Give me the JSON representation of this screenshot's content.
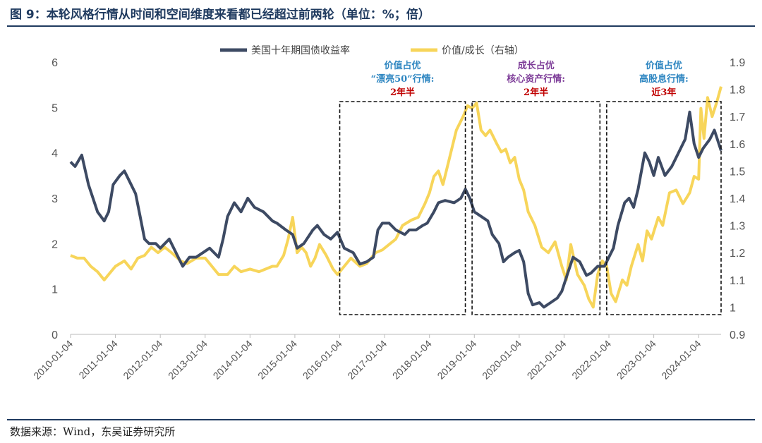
{
  "figure": {
    "title": "图 9：本轮风格行情从时间和空间维度来看都已经超过前两轮（单位：%；倍）",
    "source": "数据来源：Wind，东吴证券研究所"
  },
  "colors": {
    "yield_line": "#3d4a63",
    "value_growth_line": "#f7d55a",
    "title_blue": "#1f3a5f",
    "annotation_blue": "#2e86c1",
    "annotation_purple": "#7d3c98",
    "annotation_red": "#c00000"
  },
  "chart_data": {
    "type": "line",
    "x_tick_labels": [
      "2010-01-04",
      "2011-01-04",
      "2012-01-04",
      "2013-01-04",
      "2014-01-04",
      "2015-01-04",
      "2016-01-04",
      "2017-01-04",
      "2018-01-04",
      "2019-01-04",
      "2020-01-04",
      "2021-01-04",
      "2022-01-04",
      "2023-01-04",
      "2024-01-04"
    ],
    "xlim": [
      2010.0,
      2024.5
    ],
    "y_left": {
      "ylim": [
        0,
        6
      ],
      "ticks": [
        "0",
        "1",
        "2",
        "3",
        "4",
        "5",
        "6"
      ]
    },
    "y_right": {
      "ylim": [
        0.9,
        1.9
      ],
      "ticks": [
        "0.9",
        "1",
        "1.1",
        "1.2",
        "1.3",
        "1.4",
        "1.5",
        "1.6",
        "1.7",
        "1.8",
        "1.9"
      ]
    },
    "legend_position": "top",
    "series": [
      {
        "name": "美国十年期国债收益率",
        "axis": "left",
        "points": [
          [
            2010.0,
            3.8
          ],
          [
            2010.1,
            3.7
          ],
          [
            2010.25,
            3.95
          ],
          [
            2010.4,
            3.3
          ],
          [
            2010.5,
            3.0
          ],
          [
            2010.6,
            2.7
          ],
          [
            2010.75,
            2.5
          ],
          [
            2010.85,
            2.7
          ],
          [
            2010.95,
            3.3
          ],
          [
            2011.1,
            3.5
          ],
          [
            2011.2,
            3.6
          ],
          [
            2011.3,
            3.4
          ],
          [
            2011.45,
            3.1
          ],
          [
            2011.55,
            2.6
          ],
          [
            2011.65,
            2.1
          ],
          [
            2011.75,
            2.0
          ],
          [
            2011.9,
            2.0
          ],
          [
            2012.0,
            1.9
          ],
          [
            2012.2,
            2.1
          ],
          [
            2012.4,
            1.7
          ],
          [
            2012.5,
            1.5
          ],
          [
            2012.65,
            1.7
          ],
          [
            2012.8,
            1.7
          ],
          [
            2012.95,
            1.8
          ],
          [
            2013.1,
            1.9
          ],
          [
            2013.3,
            1.7
          ],
          [
            2013.4,
            2.1
          ],
          [
            2013.5,
            2.6
          ],
          [
            2013.65,
            2.9
          ],
          [
            2013.8,
            2.7
          ],
          [
            2013.95,
            3.0
          ],
          [
            2014.1,
            2.8
          ],
          [
            2014.3,
            2.7
          ],
          [
            2014.5,
            2.5
          ],
          [
            2014.6,
            2.45
          ],
          [
            2014.8,
            2.3
          ],
          [
            2014.95,
            2.2
          ],
          [
            2015.05,
            1.9
          ],
          [
            2015.2,
            2.0
          ],
          [
            2015.4,
            2.3
          ],
          [
            2015.5,
            2.4
          ],
          [
            2015.65,
            2.2
          ],
          [
            2015.8,
            2.1
          ],
          [
            2015.95,
            2.25
          ],
          [
            2016.1,
            1.9
          ],
          [
            2016.3,
            1.8
          ],
          [
            2016.45,
            1.55
          ],
          [
            2016.6,
            1.6
          ],
          [
            2016.75,
            1.7
          ],
          [
            2016.85,
            2.3
          ],
          [
            2016.95,
            2.45
          ],
          [
            2017.1,
            2.45
          ],
          [
            2017.25,
            2.3
          ],
          [
            2017.45,
            2.2
          ],
          [
            2017.55,
            2.3
          ],
          [
            2017.7,
            2.3
          ],
          [
            2017.85,
            2.4
          ],
          [
            2017.95,
            2.45
          ],
          [
            2018.1,
            2.7
          ],
          [
            2018.2,
            2.9
          ],
          [
            2018.35,
            2.95
          ],
          [
            2018.55,
            2.9
          ],
          [
            2018.7,
            3.0
          ],
          [
            2018.8,
            3.2
          ],
          [
            2018.9,
            3.0
          ],
          [
            2019.0,
            2.7
          ],
          [
            2019.15,
            2.6
          ],
          [
            2019.3,
            2.5
          ],
          [
            2019.4,
            2.2
          ],
          [
            2019.55,
            2.0
          ],
          [
            2019.65,
            1.6
          ],
          [
            2019.75,
            1.7
          ],
          [
            2019.9,
            1.8
          ],
          [
            2020.0,
            1.85
          ],
          [
            2020.1,
            1.6
          ],
          [
            2020.2,
            0.9
          ],
          [
            2020.3,
            0.65
          ],
          [
            2020.45,
            0.7
          ],
          [
            2020.55,
            0.6
          ],
          [
            2020.7,
            0.7
          ],
          [
            2020.85,
            0.8
          ],
          [
            2020.95,
            0.95
          ],
          [
            2021.1,
            1.4
          ],
          [
            2021.2,
            1.7
          ],
          [
            2021.35,
            1.6
          ],
          [
            2021.5,
            1.3
          ],
          [
            2021.6,
            1.35
          ],
          [
            2021.75,
            1.5
          ],
          [
            2021.9,
            1.5
          ],
          [
            2022.0,
            1.7
          ],
          [
            2022.1,
            1.9
          ],
          [
            2022.2,
            2.4
          ],
          [
            2022.35,
            2.9
          ],
          [
            2022.45,
            3.0
          ],
          [
            2022.55,
            2.8
          ],
          [
            2022.65,
            3.2
          ],
          [
            2022.8,
            4.0
          ],
          [
            2022.9,
            3.8
          ],
          [
            2023.0,
            3.5
          ],
          [
            2023.1,
            3.9
          ],
          [
            2023.25,
            3.5
          ],
          [
            2023.4,
            3.7
          ],
          [
            2023.55,
            4.0
          ],
          [
            2023.7,
            4.3
          ],
          [
            2023.8,
            4.9
          ],
          [
            2023.9,
            4.2
          ],
          [
            2024.0,
            3.9
          ],
          [
            2024.1,
            4.1
          ],
          [
            2024.25,
            4.3
          ],
          [
            2024.35,
            4.5
          ],
          [
            2024.45,
            4.2
          ],
          [
            2024.5,
            4.05
          ]
        ]
      },
      {
        "name": "价值/成长（右轴）",
        "axis": "right",
        "points": [
          [
            2010.0,
            1.19
          ],
          [
            2010.15,
            1.18
          ],
          [
            2010.3,
            1.18
          ],
          [
            2010.45,
            1.15
          ],
          [
            2010.6,
            1.13
          ],
          [
            2010.75,
            1.1
          ],
          [
            2010.85,
            1.12
          ],
          [
            2011.0,
            1.15
          ],
          [
            2011.2,
            1.17
          ],
          [
            2011.35,
            1.14
          ],
          [
            2011.5,
            1.18
          ],
          [
            2011.65,
            1.19
          ],
          [
            2011.8,
            1.22
          ],
          [
            2011.95,
            1.2
          ],
          [
            2012.1,
            1.22
          ],
          [
            2012.25,
            1.2
          ],
          [
            2012.45,
            1.17
          ],
          [
            2012.6,
            1.16
          ],
          [
            2012.8,
            1.18
          ],
          [
            2013.0,
            1.18
          ],
          [
            2013.15,
            1.15
          ],
          [
            2013.3,
            1.12
          ],
          [
            2013.5,
            1.12
          ],
          [
            2013.65,
            1.15
          ],
          [
            2013.8,
            1.13
          ],
          [
            2014.0,
            1.14
          ],
          [
            2014.2,
            1.13
          ],
          [
            2014.35,
            1.14
          ],
          [
            2014.5,
            1.15
          ],
          [
            2014.6,
            1.15
          ],
          [
            2014.75,
            1.19
          ],
          [
            2014.85,
            1.25
          ],
          [
            2014.95,
            1.33
          ],
          [
            2015.05,
            1.2
          ],
          [
            2015.15,
            1.22
          ],
          [
            2015.25,
            1.2
          ],
          [
            2015.35,
            1.15
          ],
          [
            2015.45,
            1.18
          ],
          [
            2015.55,
            1.23
          ],
          [
            2015.7,
            1.19
          ],
          [
            2015.85,
            1.14
          ],
          [
            2015.95,
            1.12
          ],
          [
            2016.1,
            1.15
          ],
          [
            2016.25,
            1.18
          ],
          [
            2016.45,
            1.15
          ],
          [
            2016.6,
            1.16
          ],
          [
            2016.8,
            1.2
          ],
          [
            2016.95,
            1.21
          ],
          [
            2017.1,
            1.23
          ],
          [
            2017.25,
            1.25
          ],
          [
            2017.4,
            1.3
          ],
          [
            2017.6,
            1.32
          ],
          [
            2017.75,
            1.33
          ],
          [
            2017.9,
            1.38
          ],
          [
            2018.0,
            1.42
          ],
          [
            2018.1,
            1.48
          ],
          [
            2018.2,
            1.5
          ],
          [
            2018.3,
            1.45
          ],
          [
            2018.45,
            1.55
          ],
          [
            2018.6,
            1.65
          ],
          [
            2018.75,
            1.7
          ],
          [
            2018.85,
            1.74
          ],
          [
            2018.95,
            1.73
          ],
          [
            2019.05,
            1.75
          ],
          [
            2019.15,
            1.65
          ],
          [
            2019.25,
            1.63
          ],
          [
            2019.35,
            1.65
          ],
          [
            2019.5,
            1.6
          ],
          [
            2019.6,
            1.57
          ],
          [
            2019.7,
            1.58
          ],
          [
            2019.8,
            1.53
          ],
          [
            2019.9,
            1.55
          ],
          [
            2020.0,
            1.47
          ],
          [
            2020.1,
            1.43
          ],
          [
            2020.2,
            1.35
          ],
          [
            2020.35,
            1.3
          ],
          [
            2020.5,
            1.22
          ],
          [
            2020.65,
            1.2
          ],
          [
            2020.8,
            1.24
          ],
          [
            2020.95,
            1.15
          ],
          [
            2021.05,
            1.1
          ],
          [
            2021.15,
            1.23
          ],
          [
            2021.3,
            1.12
          ],
          [
            2021.45,
            1.08
          ],
          [
            2021.55,
            1.03
          ],
          [
            2021.65,
            1.0
          ],
          [
            2021.75,
            1.12
          ],
          [
            2021.85,
            1.17
          ],
          [
            2021.95,
            1.15
          ],
          [
            2022.05,
            1.05
          ],
          [
            2022.15,
            1.02
          ],
          [
            2022.3,
            1.1
          ],
          [
            2022.4,
            1.08
          ],
          [
            2022.5,
            1.15
          ],
          [
            2022.65,
            1.23
          ],
          [
            2022.75,
            1.17
          ],
          [
            2022.85,
            1.28
          ],
          [
            2022.95,
            1.25
          ],
          [
            2023.1,
            1.33
          ],
          [
            2023.2,
            1.3
          ],
          [
            2023.35,
            1.42
          ],
          [
            2023.5,
            1.43
          ],
          [
            2023.65,
            1.38
          ],
          [
            2023.8,
            1.42
          ],
          [
            2023.9,
            1.48
          ],
          [
            2024.0,
            1.47
          ],
          [
            2024.05,
            1.73
          ],
          [
            2024.12,
            1.62
          ],
          [
            2024.2,
            1.77
          ],
          [
            2024.3,
            1.7
          ],
          [
            2024.4,
            1.75
          ],
          [
            2024.5,
            1.81
          ]
        ]
      }
    ],
    "annotations": [
      {
        "x_range": [
          2016.0,
          2018.8
        ],
        "lines": [
          {
            "text": "价值占优",
            "color": "annotation_blue"
          },
          {
            "text": "“漂亮50”行情:",
            "color": "annotation_blue"
          },
          {
            "text": "2年半",
            "color": "annotation_red"
          }
        ]
      },
      {
        "x_range": [
          2018.95,
          2021.8
        ],
        "lines": [
          {
            "text": "成长占优",
            "color": "annotation_purple"
          },
          {
            "text": "核心资产行情:",
            "color": "annotation_purple"
          },
          {
            "text": "2年半",
            "color": "annotation_red"
          }
        ]
      },
      {
        "x_range": [
          2021.95,
          2024.5
        ],
        "lines": [
          {
            "text": "价值占优",
            "color": "annotation_blue"
          },
          {
            "text": "高股息行情:",
            "color": "annotation_blue"
          },
          {
            "text": "近3年",
            "color": "annotation_red"
          }
        ]
      }
    ]
  }
}
